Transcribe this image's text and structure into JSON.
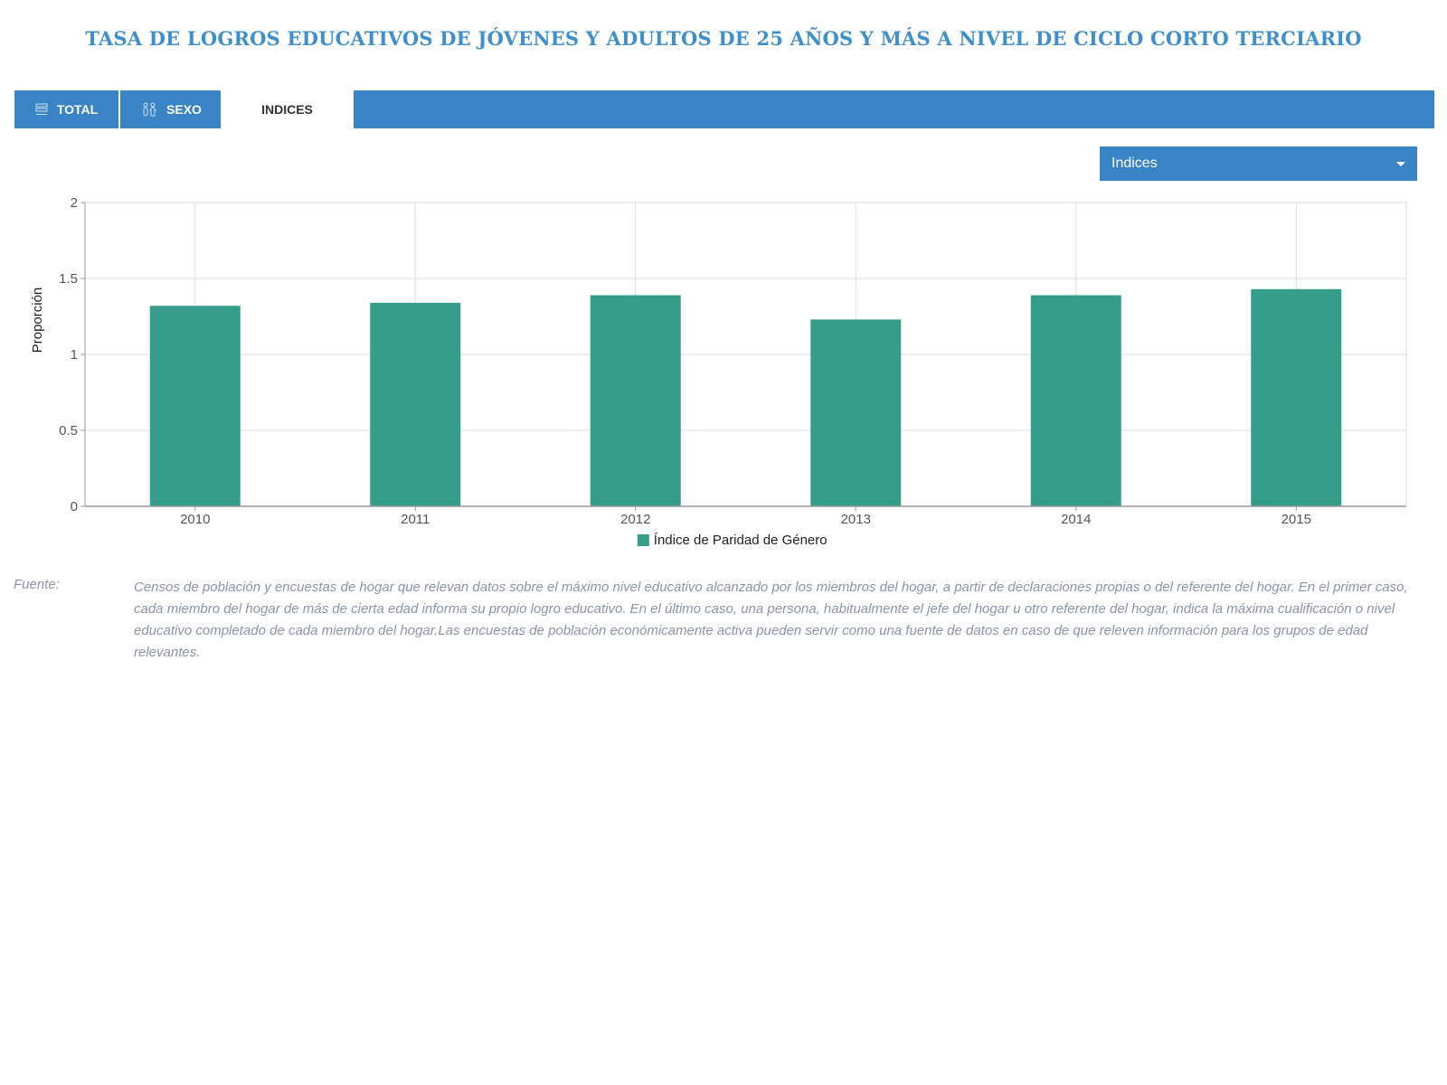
{
  "title": "TASA DE LOGROS EDUCATIVOS DE JÓVENES Y ADULTOS DE 25 AÑOS Y MÁS A NIVEL DE CICLO CORTO TERCIARIO",
  "tabs": [
    {
      "label": "TOTAL",
      "icon": "bars-icon",
      "active": false
    },
    {
      "label": "SEXO",
      "icon": "gender-icon",
      "active": false
    },
    {
      "label": "INDICES",
      "icon": "",
      "active": true
    }
  ],
  "selector": {
    "value": "Indices"
  },
  "colors": {
    "accent": "#3884c4",
    "title": "#3e8fcc",
    "bar": "#369d8b",
    "source": "#8a93ad"
  },
  "chart_data": {
    "type": "bar",
    "categories": [
      "2010",
      "2011",
      "2012",
      "2013",
      "2014",
      "2015"
    ],
    "series": [
      {
        "name": "Índice de Paridad de Género",
        "values": [
          1.32,
          1.34,
          1.39,
          1.23,
          1.39,
          1.43
        ]
      }
    ],
    "ylabel": "Proporción",
    "ylim": [
      0,
      2
    ],
    "yticks": [
      "0",
      "0.5",
      "1",
      "1.5",
      "2"
    ],
    "grid": true,
    "legend": "bottom-center"
  },
  "source": {
    "label": "Fuente:",
    "text": "Censos de población y encuestas de hogar que relevan datos sobre el máximo nivel educativo alcanzado por los miembros del hogar, a partir de declaraciones propias o del referente del hogar. En el primer caso, cada miembro del hogar de más de cierta edad informa su propio logro educativo. En el último caso, una persona, habitualmente el jefe del hogar u otro referente del hogar, indica la máxima cualificación o nivel educativo completado de cada miembro del hogar.Las encuestas de población económicamente activa pueden servir como una fuente de datos en caso de que releven información para los grupos de edad relevantes."
  }
}
